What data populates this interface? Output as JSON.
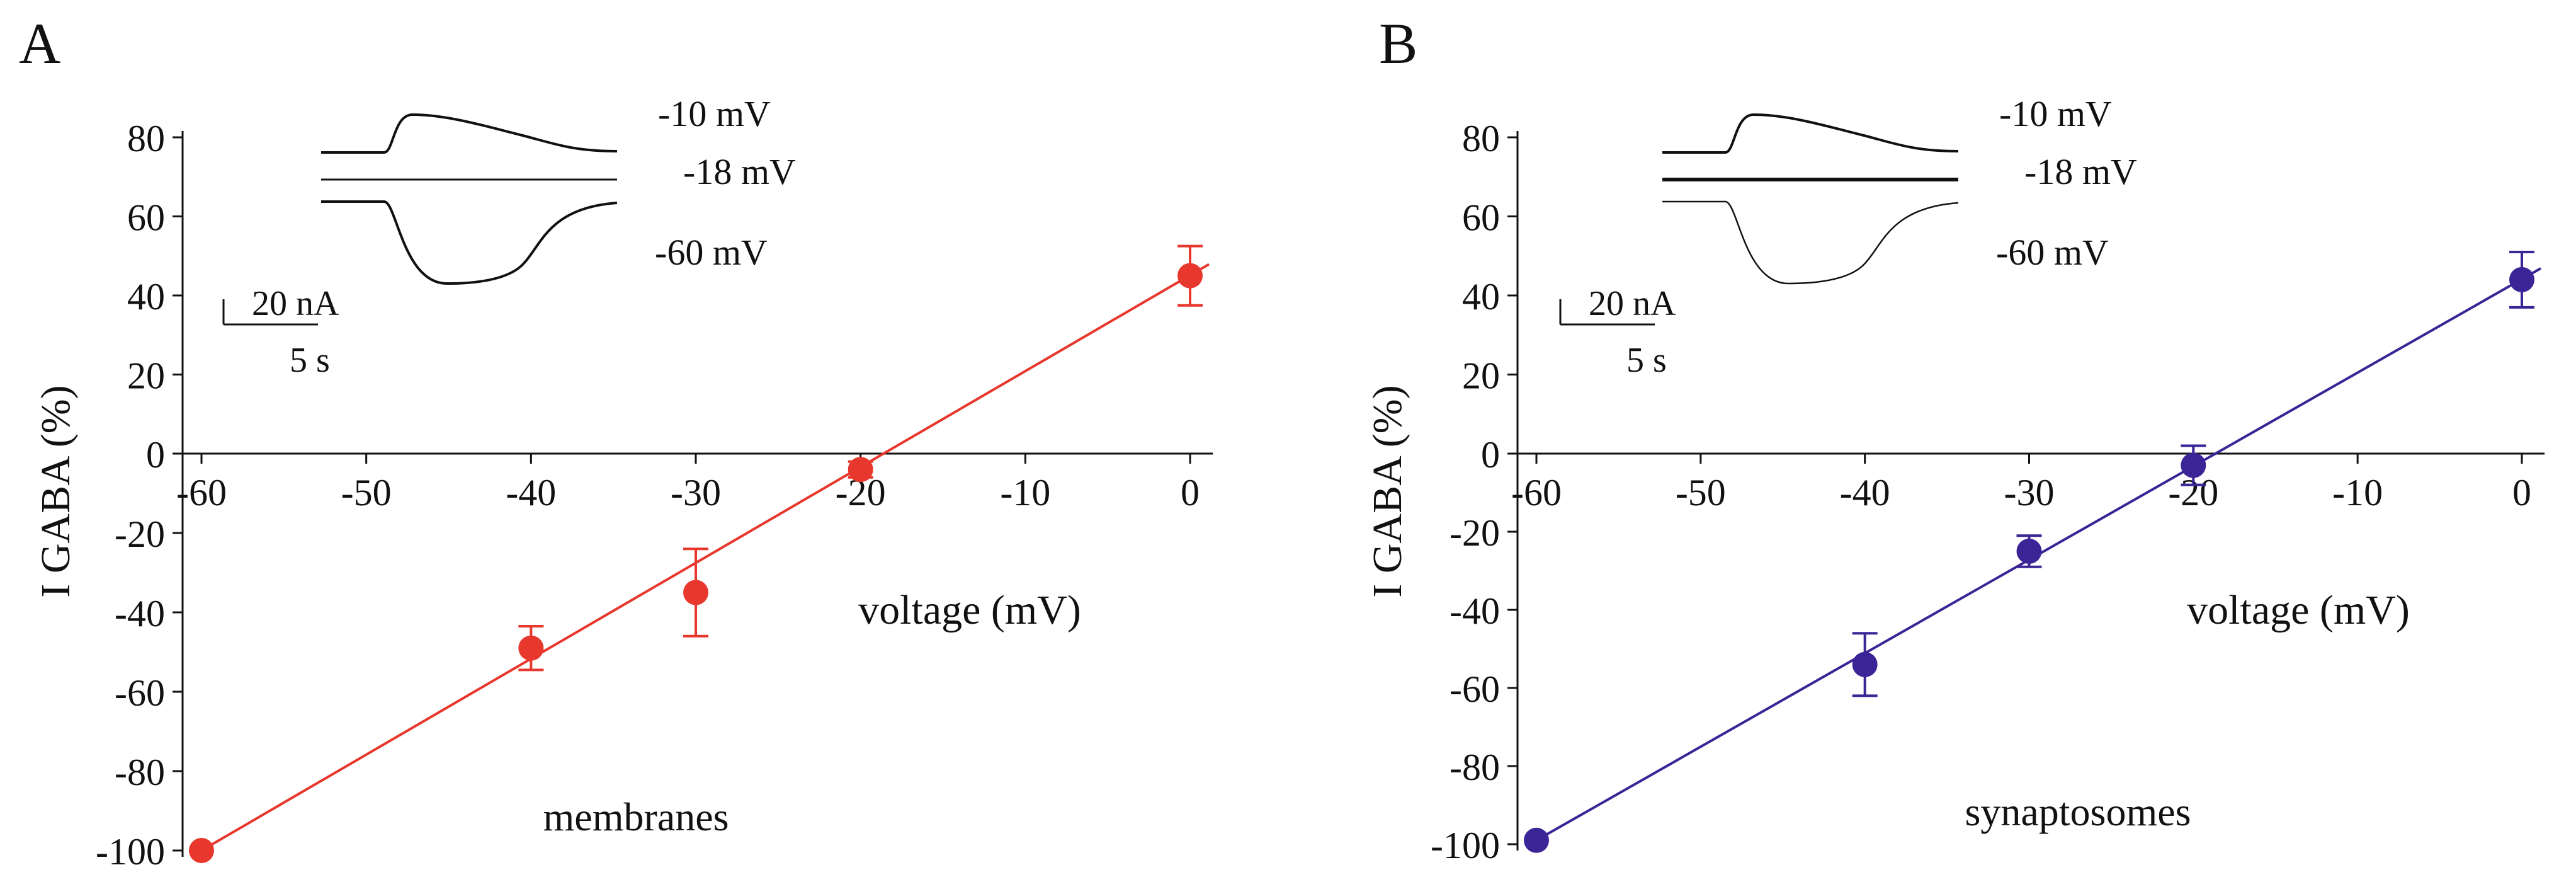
{
  "figure": {
    "panels": [
      {
        "letter": "A",
        "color": "#e8372c",
        "chart_data": {
          "type": "scatter",
          "title": "",
          "xlabel": "voltage (mV)",
          "ylabel": "I GABA (%)",
          "xlim": [
            -61,
            1
          ],
          "ylim": [
            -100,
            80
          ],
          "xticks": [
            -60,
            -50,
            -40,
            -30,
            -20,
            -10,
            0
          ],
          "xtick_labels": [
            "-60",
            "-50",
            "-40",
            "-30",
            "-20",
            "-10",
            "0"
          ],
          "yticks": [
            80,
            60,
            40,
            20,
            0,
            -20,
            -40,
            -60,
            -80,
            -100
          ],
          "ytick_labels": [
            "80",
            "60",
            "40",
            "20",
            "0",
            "-20",
            "-40",
            "-60",
            "-80",
            "-100"
          ],
          "grid": false,
          "series": [
            {
              "name": "membranes",
              "x": [
                -60,
                -40,
                -30,
                -20,
                0
              ],
              "y": [
                -100,
                -49,
                -35,
                -4,
                45
              ],
              "err": [
                0,
                5.5,
                11,
                2,
                7.5
              ]
            }
          ],
          "fit_line": {
            "x": [
              -60,
              0
            ],
            "y": [
              -100,
              45
            ]
          },
          "annotation": "membranes",
          "inset": {
            "traces": [
              {
                "label": "-10 mV",
                "shape": "outward"
              },
              {
                "label": "-18 mV",
                "shape": "flat"
              },
              {
                "label": "-60 mV",
                "shape": "inward"
              }
            ],
            "scale_current": "20 nA",
            "scale_time": "5 s"
          }
        }
      },
      {
        "letter": "B",
        "color": "#3a2496",
        "chart_data": {
          "type": "scatter",
          "title": "",
          "xlabel": "voltage (mV)",
          "ylabel": "I GABA (%)",
          "xlim": [
            -61,
            1
          ],
          "ylim": [
            -100,
            80
          ],
          "xticks": [
            -60,
            -50,
            -40,
            -30,
            -20,
            -10,
            0
          ],
          "xtick_labels": [
            "-60",
            "-50",
            "-40",
            "-30",
            "-20",
            "-10",
            "0"
          ],
          "yticks": [
            80,
            60,
            40,
            20,
            0,
            -20,
            -40,
            -60,
            -80,
            -100
          ],
          "ytick_labels": [
            "80",
            "60",
            "40",
            "20",
            "0",
            "-20",
            "-40",
            "-60",
            "-80",
            "-100"
          ],
          "grid": false,
          "series": [
            {
              "name": "synaptosomes",
              "x": [
                -60,
                -40,
                -30,
                -20,
                0
              ],
              "y": [
                -99,
                -54,
                -25,
                -3,
                44
              ],
              "err": [
                0,
                8,
                4,
                5,
                7
              ]
            }
          ],
          "fit_line": {
            "x": [
              -60,
              0
            ],
            "y": [
              -99,
              44
            ]
          },
          "annotation": "synaptosomes",
          "inset": {
            "traces": [
              {
                "label": "-10 mV",
                "shape": "outward"
              },
              {
                "label": "-18 mV",
                "shape": "flat"
              },
              {
                "label": "-60 mV",
                "shape": "inward"
              }
            ],
            "scale_current": "20 nA",
            "scale_time": "5 s"
          }
        }
      }
    ]
  }
}
